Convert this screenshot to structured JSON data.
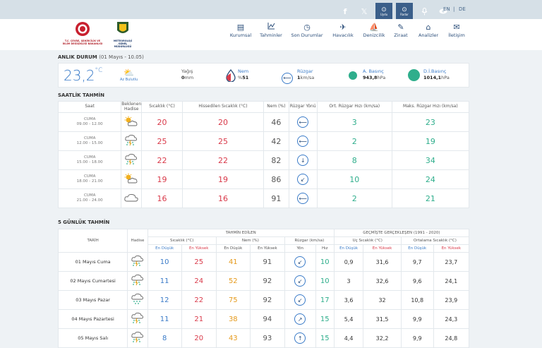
{
  "topbar": {
    "icons": [
      "facebook-icon",
      "x-icon",
      "satellite-icon",
      "radar-icon",
      "mic-icon",
      "eye-icon"
    ],
    "sat_label": "Uydu",
    "radar_label": "Radar",
    "lang_en": "EN",
    "lang_sep": "|",
    "lang_de": "DE"
  },
  "header": {
    "logo1_caption": "T.C. ÇEVRE, ŞEHİRCİLİK VE İKLİM DEĞİŞİKLİĞİ BAKANLIĞI",
    "logo2_caption": "METEOROLOJİ GENEL MÜDÜRLÜĞÜ",
    "nav": [
      {
        "label": "Kurumsal",
        "icon": "document-icon"
      },
      {
        "label": "Tahminler",
        "icon": "chart-icon"
      },
      {
        "label": "Son Durumlar",
        "icon": "clock-icon"
      },
      {
        "label": "Havacılık",
        "icon": "plane-icon"
      },
      {
        "label": "Denizcilik",
        "icon": "boat-icon"
      },
      {
        "label": "Ziraat",
        "icon": "leaf-icon"
      },
      {
        "label": "Analizler",
        "icon": "home-icon"
      },
      {
        "label": "İletişim",
        "icon": "mail-icon"
      }
    ]
  },
  "anlik": {
    "title": "ANLIK DURUM",
    "subtitle": "(01 Mayıs - 10.05)",
    "temp": "23,2",
    "temp_unit": "°C",
    "condition": "Az Bulutlu",
    "yagis_label": "Yağış",
    "yagis_value": "0",
    "yagis_unit": "mm",
    "nem_label": "Nem",
    "nem_prefix": "%",
    "nem_value": "51",
    "ruzgar_label": "Rüzgar",
    "ruzgar_value": "1",
    "ruzgar_unit": "km/sa",
    "abasinc_label": "A. Basınç",
    "abasinc_value": "943,8",
    "abasinc_unit": "hPa",
    "dibasinc_label": "D.İ.Basınç",
    "dibasinc_value": "1014,1",
    "dibasinc_unit": "hPa",
    "colors": {
      "temp": "#3a7bc8",
      "abasinc": "#2fae8c",
      "dibasinc": "#2fae8c"
    }
  },
  "saatlik": {
    "title": "SAATLİK TAHMİN",
    "headers": [
      "Saat",
      "Beklenen Hadise",
      "Sıcaklık (°C)",
      "Hissedilen Sıcaklık (°C)",
      "Nem (%)",
      "Rüzgar Yönü",
      "Ort. Rüzgar Hızı (km/sa)",
      "Maks. Rüzgar Hızı (km/sa)"
    ],
    "rows": [
      {
        "day": "CUMA",
        "time": "09.00 - 12.00",
        "icon": "partly-cloudy-icon",
        "temp": "20",
        "feels": "20",
        "nem": "46",
        "wind_icon": "wind-direction-icon",
        "avg": "3",
        "max": "23"
      },
      {
        "day": "CUMA",
        "time": "12.00 - 15.00",
        "icon": "rain-thunder-icon",
        "temp": "25",
        "feels": "25",
        "nem": "42",
        "wind_icon": "wind-direction-icon",
        "avg": "2",
        "max": "19"
      },
      {
        "day": "CUMA",
        "time": "15.00 - 18.00",
        "icon": "rain-thunder-icon",
        "temp": "22",
        "feels": "22",
        "nem": "82",
        "wind_icon": "wind-direction-icon",
        "avg": "8",
        "max": "34"
      },
      {
        "day": "CUMA",
        "time": "18.00 - 21.00",
        "icon": "partly-cloudy-icon",
        "temp": "19",
        "feels": "19",
        "nem": "86",
        "wind_icon": "wind-direction-icon",
        "avg": "10",
        "max": "24"
      },
      {
        "day": "CUMA",
        "time": "21.00 - 24.00",
        "icon": "cloud-icon",
        "temp": "16",
        "feels": "16",
        "nem": "91",
        "wind_icon": "wind-direction-icon",
        "avg": "2",
        "max": "21"
      }
    ]
  },
  "gunluk": {
    "title": "5 GÜNLÜK TAHMİN",
    "group_tahmin": "TAHMİN EDİLEN",
    "group_gecmis": "GEÇMİŞTE GERÇEKLEŞEN (1991 - 2020)",
    "col_tarih": "TARİH",
    "col_hadise": "Hadise",
    "sub_sicaklik": "Sıcaklık (°C)",
    "sub_nem": "Nem (%)",
    "sub_ruzgar": "Rüzgar (km/sa)",
    "sub_uc": "Uç Sıcaklık (°C)",
    "sub_ort": "Ortalama Sıcaklık (°C)",
    "en_dusuk": "En Düşük",
    "en_yuksek": "En Yüksek",
    "yon": "Yön",
    "hiz": "Hız",
    "rows": [
      {
        "date": "01 Mayıs Cuma",
        "icon": "rain-thunder-icon",
        "tmin": "10",
        "tmax": "25",
        "nmin": "41",
        "nmax": "91",
        "hiz": "10",
        "ucmin": "0,9",
        "ucmax": "31,6",
        "ortmin": "9,7",
        "ortmax": "23,7"
      },
      {
        "date": "02 Mayıs Cumartesi",
        "icon": "rain-thunder-icon",
        "tmin": "11",
        "tmax": "24",
        "nmin": "52",
        "nmax": "92",
        "hiz": "10",
        "ucmin": "3",
        "ucmax": "32,6",
        "ortmin": "9,6",
        "ortmax": "24,1"
      },
      {
        "date": "03 Mayıs Pazar",
        "icon": "rain-icon",
        "tmin": "12",
        "tmax": "22",
        "nmin": "75",
        "nmax": "92",
        "hiz": "17",
        "ucmin": "3,6",
        "ucmax": "32",
        "ortmin": "10,8",
        "ortmax": "23,9"
      },
      {
        "date": "04 Mayıs Pazartesi",
        "icon": "rain-thunder-icon",
        "tmin": "11",
        "tmax": "21",
        "nmin": "38",
        "nmax": "94",
        "hiz": "15",
        "ucmin": "5,4",
        "ucmax": "31,5",
        "ortmin": "9,9",
        "ortmax": "24,3"
      },
      {
        "date": "05 Mayıs Salı",
        "icon": "rain-thunder-icon",
        "tmin": "8",
        "tmax": "20",
        "nmin": "43",
        "nmax": "93",
        "hiz": "15",
        "ucmin": "4,4",
        "ucmax": "32,2",
        "ortmin": "9,9",
        "ortmax": "24,8"
      }
    ]
  }
}
